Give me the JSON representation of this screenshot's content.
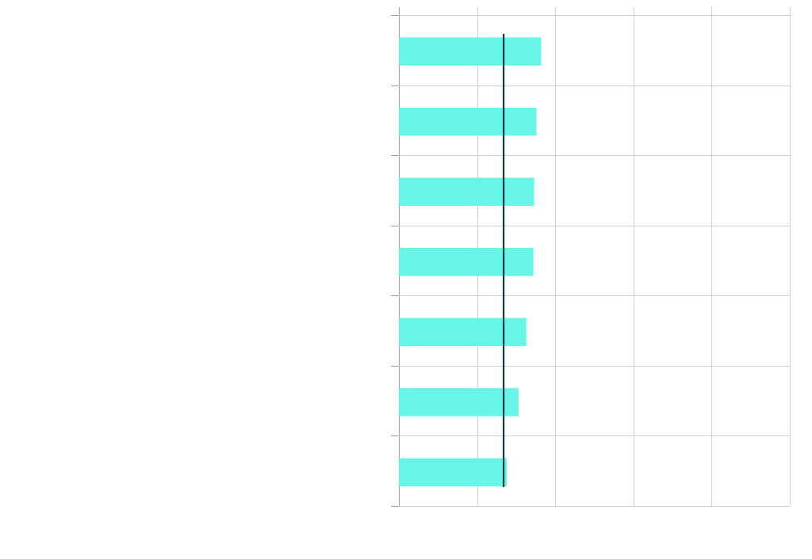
{
  "chart_data": {
    "type": "bar",
    "orientation": "horizontal",
    "title": "",
    "xlabel": "",
    "ylabel": "",
    "categories": [
      "",
      "",
      "",
      "",
      "",
      "",
      ""
    ],
    "values": [
      0.91,
      0.88,
      0.865,
      0.86,
      0.815,
      0.765,
      0.69
    ],
    "xlim": [
      0,
      2.5
    ],
    "x_gridlines": [
      0,
      0.5,
      1.0,
      1.5,
      2.0,
      2.5
    ],
    "reference_line": {
      "value": 0.67,
      "color": "#0d3b3f"
    },
    "grid": true,
    "legend": "none",
    "colors": {
      "bar": "#66f5e6",
      "grid": "#cfcfcf",
      "axis": "#9a9a9a"
    }
  }
}
